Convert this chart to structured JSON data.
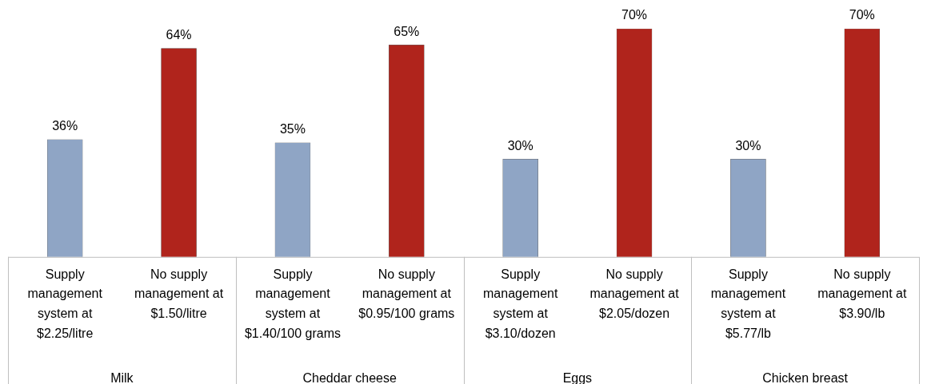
{
  "chart_data": {
    "type": "bar",
    "categories": [
      "Supply management system at $2.25/litre",
      "No supply management at $1.50/litre",
      "Supply management system at $1.40/100 grams",
      "No supply management at $0.95/100 grams",
      "Supply management system at $3.10/dozen",
      "No supply management at $2.05/dozen",
      "Supply management system at $5.77/lb",
      "No supply management at $3.90/lb"
    ],
    "values": [
      36,
      64,
      35,
      65,
      30,
      70,
      30,
      70
    ],
    "value_labels": [
      "36%",
      "64%",
      "35%",
      "65%",
      "30%",
      "70%",
      "30%",
      "70%"
    ],
    "colors": [
      "#8fa5c5",
      "#b0241c",
      "#8fa5c5",
      "#b0241c",
      "#8fa5c5",
      "#b0241c",
      "#8fa5c5",
      "#b0241c"
    ],
    "annotations": [
      "Milk",
      "Cheddar cheese",
      "Eggs",
      "Chicken breast"
    ],
    "grid": false,
    "legend": false
  }
}
